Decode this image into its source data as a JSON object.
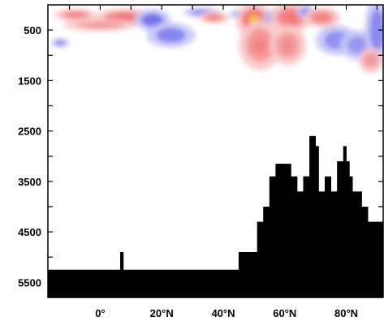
{
  "chart_data": {
    "type": "heatmap",
    "title": "",
    "xlabel": "",
    "ylabel": "",
    "x_axis": {
      "range": [
        -17,
        92
      ],
      "ticks": [
        -10,
        0,
        10,
        20,
        30,
        40,
        50,
        60,
        70,
        80,
        90
      ],
      "tick_labels": [
        {
          "value": 0,
          "label": "0°"
        },
        {
          "value": 20,
          "label": "20°N"
        },
        {
          "value": 40,
          "label": "40°N"
        },
        {
          "value": 60,
          "label": "60°N"
        },
        {
          "value": 80,
          "label": "80°N"
        }
      ]
    },
    "y_axis": {
      "range": [
        0,
        5800
      ],
      "inverted": true,
      "ticks": [
        500,
        1000,
        1500,
        2000,
        2500,
        3000,
        3500,
        4000,
        4500,
        5000,
        5500
      ],
      "tick_labels": [
        {
          "value": 500,
          "label": "500"
        },
        {
          "value": 1500,
          "label": "1500"
        },
        {
          "value": 2500,
          "label": "2500"
        },
        {
          "value": 3500,
          "label": "3500"
        },
        {
          "value": 4500,
          "label": "4500"
        },
        {
          "value": 5500,
          "label": "5500"
        }
      ]
    },
    "colors": {
      "positive_strong": "#f0c020",
      "positive_mid": "#f07070",
      "positive_weak": "#f8c8c8",
      "negative_mid": "#5a5ae8",
      "negative_weak": "#c8c8f8",
      "land": "#000000"
    },
    "anomaly_blobs": [
      {
        "x": 8,
        "depth": 250,
        "rx": 10,
        "ry": 180,
        "sign": 1,
        "intensity": 0.8
      },
      {
        "x": -8,
        "depth": 200,
        "rx": 7,
        "ry": 120,
        "sign": 1,
        "intensity": 0.6
      },
      {
        "x": 0,
        "depth": 400,
        "rx": 12,
        "ry": 120,
        "sign": 1,
        "intensity": 0.3
      },
      {
        "x": 17,
        "depth": 300,
        "rx": 6,
        "ry": 220,
        "sign": -1,
        "intensity": 0.8
      },
      {
        "x": 23,
        "depth": 600,
        "rx": 8,
        "ry": 250,
        "sign": -1,
        "intensity": 0.6
      },
      {
        "x": 33,
        "depth": 150,
        "rx": 6,
        "ry": 100,
        "sign": -1,
        "intensity": 0.4
      },
      {
        "x": 37,
        "depth": 250,
        "rx": 5,
        "ry": 120,
        "sign": 1,
        "intensity": 0.5
      },
      {
        "x": 46,
        "depth": 180,
        "rx": 4,
        "ry": 100,
        "sign": -1,
        "intensity": 0.5
      },
      {
        "x": 50,
        "depth": 300,
        "rx": 6,
        "ry": 350,
        "sign": 1,
        "intensity": 1.0
      },
      {
        "x": 52,
        "depth": 800,
        "rx": 7,
        "ry": 500,
        "sign": 1,
        "intensity": 0.5
      },
      {
        "x": 56,
        "depth": 250,
        "rx": 3,
        "ry": 150,
        "sign": -1,
        "intensity": 0.6
      },
      {
        "x": 62,
        "depth": 250,
        "rx": 7,
        "ry": 300,
        "sign": 1,
        "intensity": 0.75
      },
      {
        "x": 61,
        "depth": 800,
        "rx": 6,
        "ry": 400,
        "sign": 1,
        "intensity": 0.4
      },
      {
        "x": 67,
        "depth": 150,
        "rx": 3,
        "ry": 150,
        "sign": -1,
        "intensity": 0.6
      },
      {
        "x": 72,
        "depth": 250,
        "rx": 6,
        "ry": 200,
        "sign": 1,
        "intensity": 0.6
      },
      {
        "x": 77,
        "depth": 700,
        "rx": 7,
        "ry": 300,
        "sign": -1,
        "intensity": 0.45
      },
      {
        "x": 84,
        "depth": 800,
        "rx": 6,
        "ry": 300,
        "sign": -1,
        "intensity": 0.35
      },
      {
        "x": 90,
        "depth": 500,
        "rx": 4,
        "ry": 700,
        "sign": -1,
        "intensity": 0.55
      },
      {
        "x": 88,
        "depth": 1100,
        "rx": 4,
        "ry": 250,
        "sign": 1,
        "intensity": 0.3
      },
      {
        "x": -13,
        "depth": 750,
        "rx": 3,
        "ry": 90,
        "sign": -1,
        "intensity": 0.45
      }
    ],
    "bathymetry": {
      "type": "step",
      "x_edges": [
        -17,
        6.5,
        7.5,
        45,
        51,
        53,
        55,
        57,
        62,
        64,
        66,
        68,
        70,
        71,
        72,
        73,
        75,
        77,
        79,
        80,
        81,
        82,
        84,
        85,
        87,
        92
      ],
      "depth_top": [
        5250,
        4900,
        5250,
        4900,
        4300,
        4000,
        3400,
        3150,
        3400,
        3700,
        3400,
        2600,
        2800,
        3700,
        3700,
        3400,
        3700,
        3100,
        2800,
        3100,
        3400,
        3700,
        3700,
        4000,
        4300
      ]
    }
  }
}
